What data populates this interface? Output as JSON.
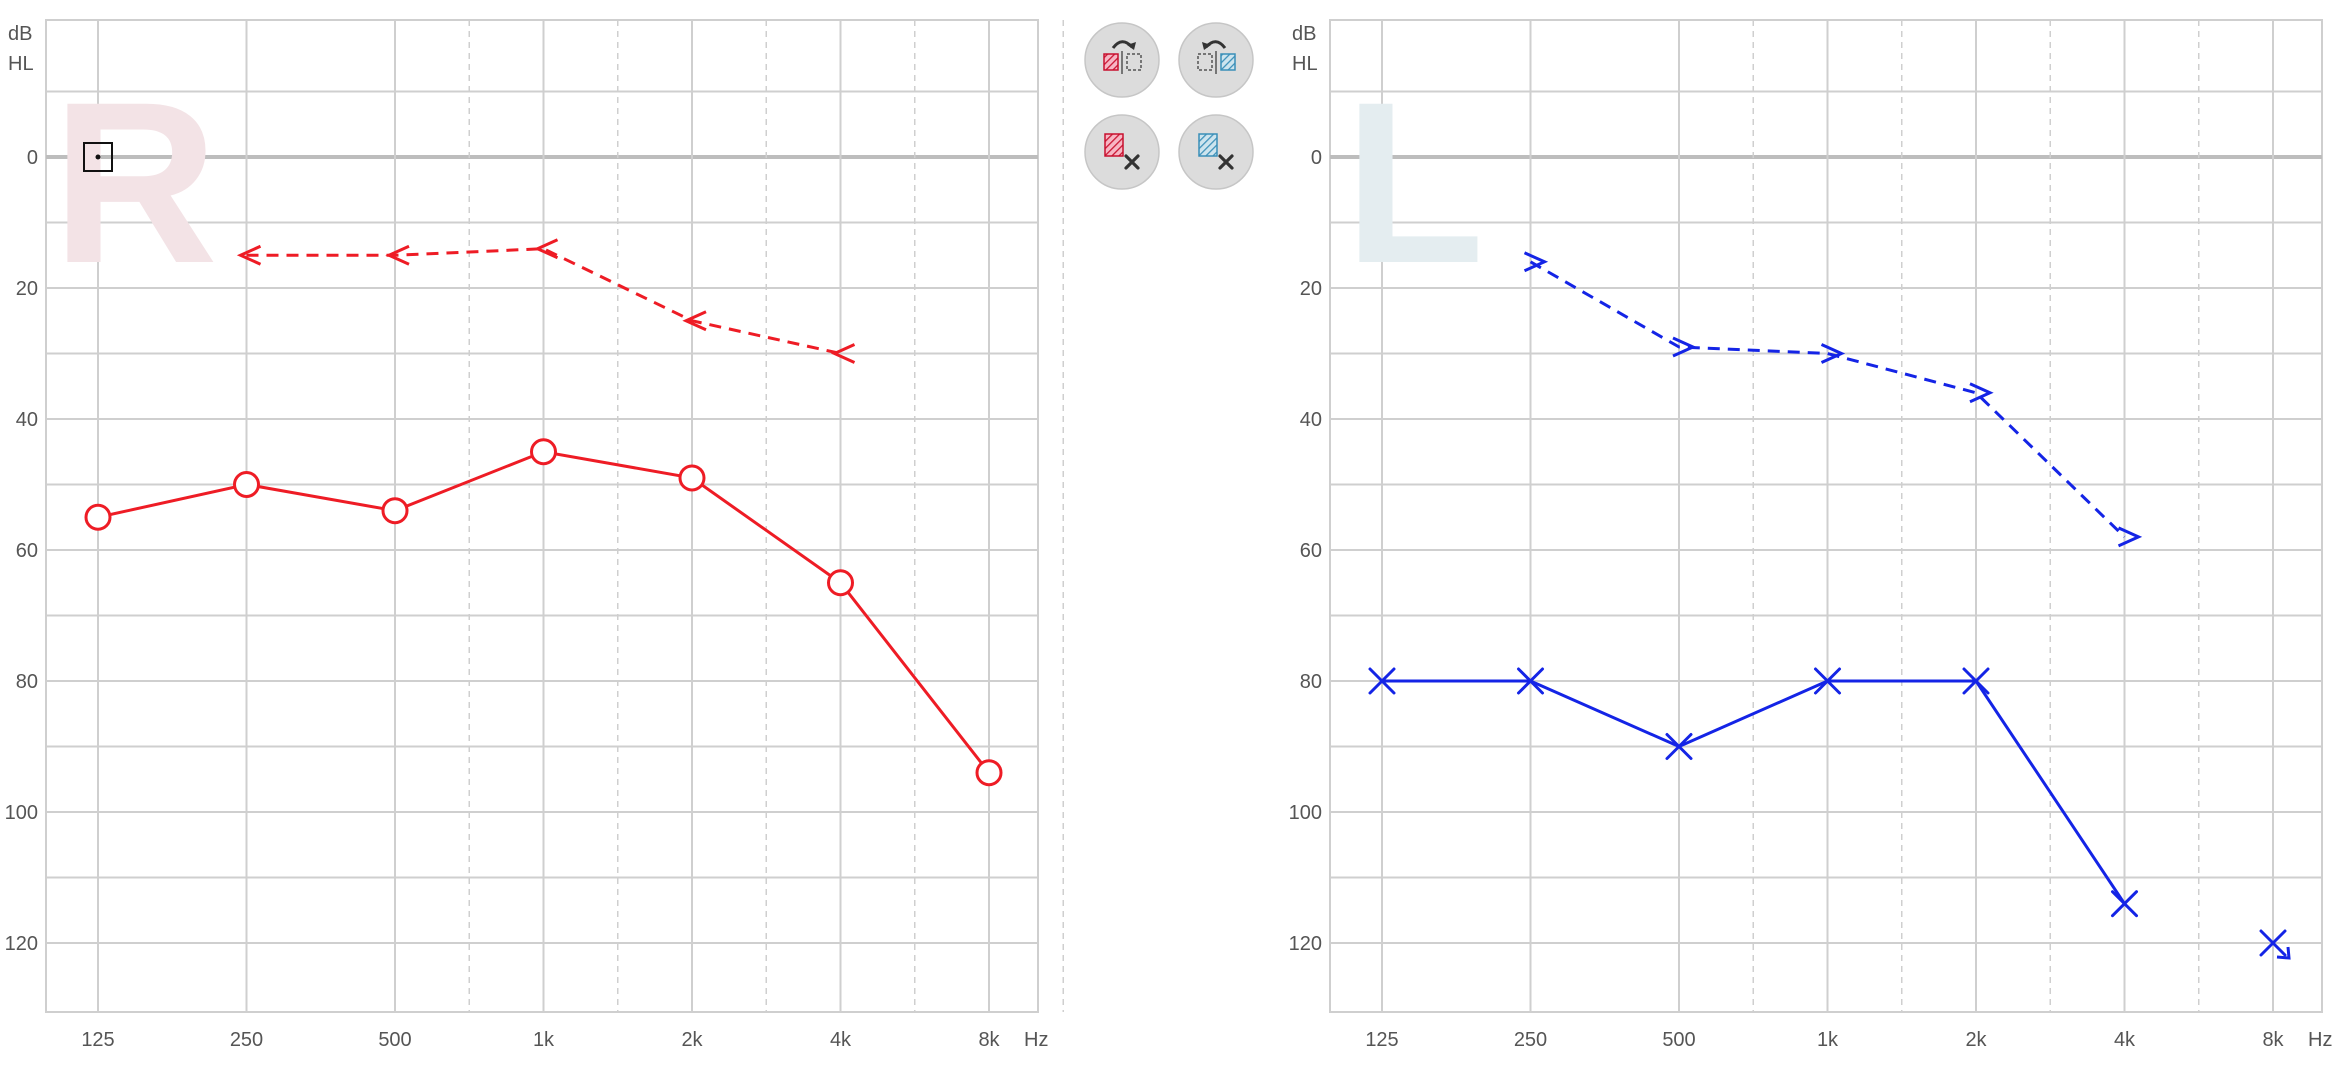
{
  "chart_data": [
    {
      "type": "line",
      "ear": "right",
      "ear_letter": "R",
      "y_unit_line1": "dB",
      "y_unit_line2": "HL",
      "x_unit": "Hz",
      "categories": [
        "125",
        "250",
        "500",
        "1k",
        "2k",
        "4k",
        "8k"
      ],
      "y_ticks": [
        "0",
        "20",
        "40",
        "60",
        "80",
        "100",
        "120"
      ],
      "ylim": [
        -20,
        130
      ],
      "y_inverted": true,
      "grid": true,
      "series": [
        {
          "marker": "circle",
          "style": "solid",
          "color": "#ee1c25",
          "points": [
            {
              "x": "125",
              "y": 55
            },
            {
              "x": "250",
              "y": 50
            },
            {
              "x": "500",
              "y": 54
            },
            {
              "x": "1k",
              "y": 45
            },
            {
              "x": "2k",
              "y": 49
            },
            {
              "x": "4k",
              "y": 65
            },
            {
              "x": "8k",
              "y": 94
            }
          ]
        },
        {
          "marker": "bracket-left",
          "style": "dashed",
          "color": "#ee1c25",
          "points": [
            {
              "x": "250",
              "y": 15
            },
            {
              "x": "500",
              "y": 15
            },
            {
              "x": "1k",
              "y": 14
            },
            {
              "x": "2k",
              "y": 25
            },
            {
              "x": "4k",
              "y": 30
            }
          ]
        }
      ],
      "annotations": [
        {
          "marker": "square-dot",
          "x": "125",
          "y": 0
        }
      ]
    },
    {
      "type": "line",
      "ear": "left",
      "ear_letter": "L",
      "y_unit_line1": "dB",
      "y_unit_line2": "HL",
      "x_unit": "Hz",
      "categories": [
        "125",
        "250",
        "500",
        "1k",
        "2k",
        "4k",
        "8k"
      ],
      "y_ticks": [
        "0",
        "20",
        "40",
        "60",
        "80",
        "100",
        "120"
      ],
      "ylim": [
        -20,
        130
      ],
      "y_inverted": true,
      "grid": true,
      "series": [
        {
          "marker": "x",
          "style": "solid",
          "color": "#1424e6",
          "points": [
            {
              "x": "125",
              "y": 80
            },
            {
              "x": "250",
              "y": 80
            },
            {
              "x": "500",
              "y": 90
            },
            {
              "x": "1k",
              "y": 80
            },
            {
              "x": "2k",
              "y": 80
            },
            {
              "x": "4k",
              "y": 114
            }
          ]
        },
        {
          "marker": "bracket-right",
          "style": "dashed",
          "color": "#1424e6",
          "points": [
            {
              "x": "250",
              "y": 16
            },
            {
              "x": "500",
              "y": 29
            },
            {
              "x": "1k",
              "y": 30
            },
            {
              "x": "2k",
              "y": 36
            },
            {
              "x": "4k",
              "y": 58
            }
          ]
        }
      ],
      "annotations": [
        {
          "marker": "x-no-response",
          "x": "8k",
          "y": 120
        }
      ]
    }
  ],
  "toolbar": {
    "buttons": [
      {
        "icon": "copy-right-to-left-icon"
      },
      {
        "icon": "copy-left-to-right-icon"
      },
      {
        "icon": "clear-right-icon"
      },
      {
        "icon": "clear-left-icon"
      }
    ]
  },
  "colors": {
    "right": "#ee1c25",
    "left": "#1424e6",
    "grid": "#cfcfcf",
    "right_letter": "#f3e3e6",
    "left_letter": "#e4edf0"
  }
}
